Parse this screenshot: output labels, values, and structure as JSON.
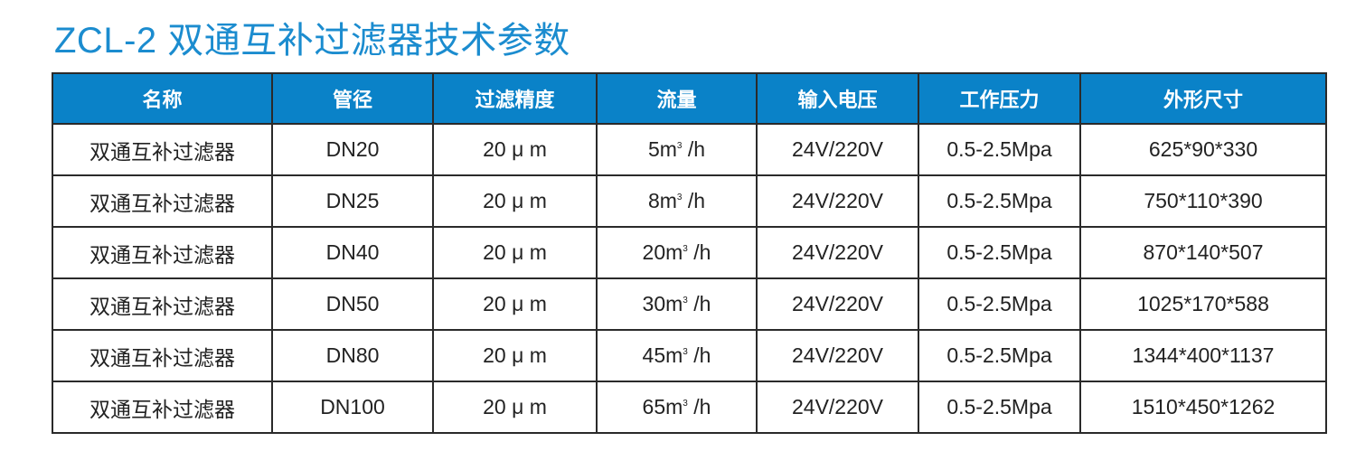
{
  "title": "ZCL-2 双通互补过滤器技术参数",
  "colors": {
    "title": "#1b8ccf",
    "header_bg": "#0a82c8"
  },
  "table": {
    "headers": [
      "名称",
      "管径",
      "过滤精度",
      "流量",
      "输入电压",
      "工作压力",
      "外形尺寸"
    ],
    "rows": [
      {
        "name": "双通互补过滤器",
        "dn": "DN20",
        "precision": "20 μ m",
        "flow": "5m",
        "flow_unit": "/h",
        "voltage": "24V/220V",
        "pressure": "0.5-2.5Mpa",
        "size": "625*90*330"
      },
      {
        "name": "双通互补过滤器",
        "dn": "DN25",
        "precision": "20 μ m",
        "flow": "8m",
        "flow_unit": "/h",
        "voltage": "24V/220V",
        "pressure": "0.5-2.5Mpa",
        "size": "750*110*390"
      },
      {
        "name": "双通互补过滤器",
        "dn": "DN40",
        "precision": "20 μ m",
        "flow": "20m",
        "flow_unit": "/h",
        "voltage": "24V/220V",
        "pressure": "0.5-2.5Mpa",
        "size": "870*140*507"
      },
      {
        "name": "双通互补过滤器",
        "dn": "DN50",
        "precision": "20 μ m",
        "flow": "30m",
        "flow_unit": "/h",
        "voltage": "24V/220V",
        "pressure": "0.5-2.5Mpa",
        "size": "1025*170*588"
      },
      {
        "name": "双通互补过滤器",
        "dn": "DN80",
        "precision": "20 μ m",
        "flow": "45m",
        "flow_unit": "/h",
        "voltage": "24V/220V",
        "pressure": "0.5-2.5Mpa",
        "size": "1344*400*1137"
      },
      {
        "name": "双通互补过滤器",
        "dn": "DN100",
        "precision": "20 μ m",
        "flow": "65m",
        "flow_unit": "/h",
        "voltage": "24V/220V",
        "pressure": "0.5-2.5Mpa",
        "size": "1510*450*1262"
      }
    ],
    "superscript": "3"
  }
}
